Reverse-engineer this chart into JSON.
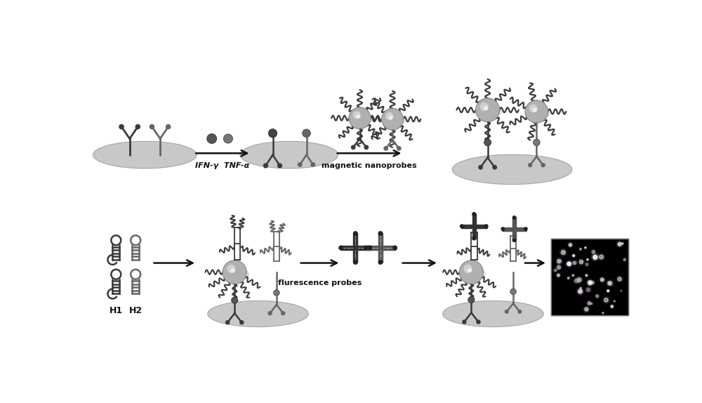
{
  "background_color": "#ffffff",
  "fig_width": 10.0,
  "fig_height": 5.74,
  "arrow_label_1": "IFN-γ  TNF-α",
  "arrow_label_2": "magnetic nanoprobes",
  "arrow_label_3": "flurescence probes",
  "label_H1": "H1",
  "label_H2": "H2",
  "dark_gray": "#3a3a3a",
  "mid_gray": "#666666",
  "light_gray": "#999999",
  "oval_color": "#c8c8c8",
  "sphere_color": "#b0b0b0",
  "sphere_highlight": "#d8d8d8",
  "black": "#111111",
  "xlim": [
    0,
    10
  ],
  "ylim": [
    0,
    5.74
  ]
}
